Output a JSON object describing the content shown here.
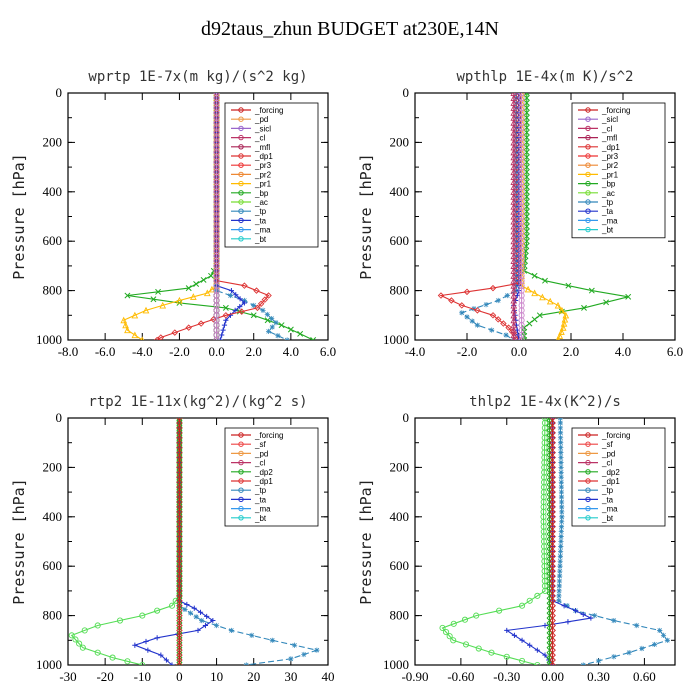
{
  "title": "d92taus_zhun  BUDGET at230E,14N",
  "chart_data": [
    {
      "type": "line",
      "title": "wprtp  1E-7x(m kg)/(s^2 kg)",
      "ylabel": "Pressure [hPa]",
      "xlim": [
        -8,
        6
      ],
      "ylim": [
        1000,
        0
      ],
      "x_ticks": [
        "-8.0",
        "-6.0",
        "-4.0",
        "-2.0",
        "0.0",
        "2.0",
        "4.0",
        "6.0"
      ],
      "x_tick_values": [
        -8,
        -6,
        -4,
        -2,
        0,
        2,
        4,
        6
      ],
      "y_ticks": [
        0,
        200,
        400,
        600,
        800,
        1000
      ],
      "legend": [
        "_forcing",
        "_pd",
        "_sicl",
        "_cl",
        "_mfl",
        "_dp1",
        "_pr3",
        "_pr2",
        "_pr1",
        "_bp",
        "_ac",
        "_tp",
        "_ta",
        "_ma",
        "_bt"
      ],
      "series": [
        {
          "name": "_bp",
          "color": "#22aa22",
          "marker": "x",
          "points": [
            [
              0,
              0
            ],
            [
              0,
              700
            ],
            [
              -0.3,
              740
            ],
            [
              -1.5,
              790
            ],
            [
              -4.8,
              820
            ],
            [
              -2.0,
              850
            ],
            [
              0.5,
              870
            ],
            [
              2.0,
              900
            ],
            [
              3.5,
              940
            ],
            [
              4.5,
              975
            ],
            [
              5.2,
              1000
            ]
          ]
        },
        {
          "name": "_pr1",
          "color": "#ffbb00",
          "marker": "triangle",
          "points": [
            [
              0,
              0
            ],
            [
              0,
              780
            ],
            [
              -0.5,
              810
            ],
            [
              -2.0,
              840
            ],
            [
              -3.8,
              880
            ],
            [
              -5.0,
              920
            ],
            [
              -4.8,
              960
            ],
            [
              -4.0,
              1000
            ]
          ]
        },
        {
          "name": "_ac",
          "color": "#77dd33",
          "marker": "circle",
          "points": [
            [
              0,
              0
            ],
            [
              0,
              1000
            ]
          ]
        },
        {
          "name": "_tp",
          "color": "#3388bb",
          "marker": "asterisk",
          "points": [
            [
              0,
              0
            ],
            [
              0,
              800
            ],
            [
              1.5,
              840
            ],
            [
              2.5,
              880
            ],
            [
              3.2,
              930
            ],
            [
              2.8,
              965
            ],
            [
              3.8,
              1000
            ]
          ]
        },
        {
          "name": "_ta",
          "color": "#2233cc",
          "marker": "plus",
          "points": [
            [
              0,
              0
            ],
            [
              0,
              780
            ],
            [
              0.8,
              800
            ],
            [
              1.5,
              850
            ],
            [
              1.0,
              880
            ],
            [
              0.5,
              920
            ],
            [
              0.2,
              1000
            ]
          ]
        },
        {
          "name": "_dp1",
          "color": "#dd3333",
          "marker": "diamond",
          "points": [
            [
              0,
              0
            ],
            [
              0,
              760
            ],
            [
              1.5,
              780
            ],
            [
              2.8,
              820
            ],
            [
              2.2,
              870
            ],
            [
              0.5,
              900
            ],
            [
              -1.5,
              950
            ],
            [
              -3.0,
              990
            ],
            [
              -3.2,
              1000
            ]
          ]
        },
        {
          "name": "_forcing",
          "color": "#000000",
          "marker": "circle",
          "points": [
            [
              0,
              0
            ],
            [
              0,
              1000
            ]
          ]
        },
        {
          "name": "_pd",
          "color": "#cc88cc",
          "marker": "circle",
          "points": [
            [
              0,
              0
            ],
            [
              0,
              1000
            ]
          ]
        }
      ]
    },
    {
      "type": "line",
      "title": "wpthlp  1E-4x(m K)/s^2",
      "ylabel": "Pressure [hPa]",
      "xlim": [
        -4,
        6
      ],
      "ylim": [
        1000,
        0
      ],
      "x_ticks": [
        "-4.0",
        "-2.0",
        "0.0",
        "2.0",
        "4.0",
        "6.0"
      ],
      "x_tick_values": [
        -4,
        -2,
        0,
        2,
        4,
        6
      ],
      "y_ticks": [
        0,
        200,
        400,
        600,
        800,
        1000
      ],
      "legend": [
        "_forcing",
        "_sicl",
        "_cl",
        "_mfl",
        "_dp1",
        "_pr3",
        "_pr2",
        "_pr1",
        "_bp",
        "_ac",
        "_tp",
        "_ta",
        "_ma",
        "_bt"
      ],
      "series": [
        {
          "name": "_bp",
          "color": "#22aa22",
          "marker": "x",
          "points": [
            [
              0.3,
              0
            ],
            [
              0.3,
              600
            ],
            [
              0.2,
              720
            ],
            [
              1.0,
              760
            ],
            [
              2.8,
              800
            ],
            [
              4.2,
              825
            ],
            [
              2.5,
              870
            ],
            [
              0.8,
              900
            ],
            [
              0.2,
              950
            ],
            [
              0.2,
              1000
            ]
          ]
        },
        {
          "name": "_pr1",
          "color": "#ffbb00",
          "marker": "triangle",
          "points": [
            [
              0.1,
              0
            ],
            [
              0.1,
              780
            ],
            [
              0.6,
              810
            ],
            [
              1.5,
              860
            ],
            [
              1.8,
              900
            ],
            [
              1.7,
              950
            ],
            [
              1.5,
              1000
            ]
          ]
        },
        {
          "name": "_tp",
          "color": "#3388bb",
          "marker": "asterisk",
          "points": [
            [
              -0.1,
              0
            ],
            [
              -0.1,
              800
            ],
            [
              -0.8,
              840
            ],
            [
              -2.2,
              890
            ],
            [
              -1.6,
              940
            ],
            [
              -0.5,
              980
            ],
            [
              -0.2,
              1000
            ]
          ]
        },
        {
          "name": "_dp1",
          "color": "#dd3333",
          "marker": "diamond",
          "points": [
            [
              0,
              0
            ],
            [
              0,
              770
            ],
            [
              -1.0,
              790
            ],
            [
              -3.0,
              820
            ],
            [
              -2.2,
              860
            ],
            [
              -1.0,
              900
            ],
            [
              -0.4,
              950
            ],
            [
              0,
              1000
            ]
          ]
        },
        {
          "name": "_ta",
          "color": "#2233cc",
          "marker": "plus",
          "points": [
            [
              0,
              0
            ],
            [
              0,
              800
            ],
            [
              -0.2,
              860
            ],
            [
              -0.1,
              940
            ],
            [
              0,
              1000
            ]
          ]
        },
        {
          "name": "_forcing",
          "color": "#cc88cc",
          "marker": "circle",
          "points": [
            [
              0.1,
              0
            ],
            [
              0.1,
              1000
            ]
          ]
        },
        {
          "name": "_cl",
          "color": "#bb3366",
          "marker": "triangle",
          "points": [
            [
              -0.2,
              0
            ],
            [
              -0.2,
              1000
            ]
          ]
        }
      ]
    },
    {
      "type": "line",
      "title": "rtp2  1E-11x(kg^2)/(kg^2 s)",
      "ylabel": "Pressure [hPa]",
      "xlim": [
        -30,
        40
      ],
      "ylim": [
        1000,
        0
      ],
      "x_ticks": [
        "-30",
        "-20",
        "-10",
        "0",
        "10",
        "20",
        "30",
        "40"
      ],
      "x_tick_values": [
        -30,
        -20,
        -10,
        0,
        10,
        20,
        30,
        40
      ],
      "y_ticks": [
        0,
        200,
        400,
        600,
        800,
        1000
      ],
      "legend": [
        "_forcing",
        "_sf",
        "_pd",
        "_cl",
        "_dp2",
        "_dp1",
        "_tp",
        "_ta",
        "_ma",
        "_bt"
      ],
      "series": [
        {
          "name": "_dp1",
          "color": "#55dd55",
          "marker": "circle",
          "points": [
            [
              0,
              0
            ],
            [
              0,
              720
            ],
            [
              -2,
              760
            ],
            [
              -10,
              800
            ],
            [
              -22,
              840
            ],
            [
              -29,
              880
            ],
            [
              -26,
              930
            ],
            [
              -18,
              970
            ],
            [
              -10,
              1000
            ]
          ]
        },
        {
          "name": "_tp",
          "color": "#3388bb",
          "marker": "asterisk",
          "points": [
            [
              0,
              0
            ],
            [
              0,
              760
            ],
            [
              3,
              790
            ],
            [
              6,
              820
            ],
            [
              14,
              860
            ],
            [
              25,
              900
            ],
            [
              37,
              940
            ],
            [
              30,
              975
            ],
            [
              18,
              1000
            ]
          ]
        },
        {
          "name": "_ta",
          "color": "#2233cc",
          "marker": "plus",
          "points": [
            [
              0,
              0
            ],
            [
              0,
              740
            ],
            [
              4,
              770
            ],
            [
              9,
              820
            ],
            [
              5,
              860
            ],
            [
              -6,
              890
            ],
            [
              -12,
              920
            ],
            [
              -5,
              960
            ],
            [
              -2,
              1000
            ]
          ]
        },
        {
          "name": "_dp2",
          "color": "#22aa22",
          "marker": "x",
          "points": [
            [
              0,
              0
            ],
            [
              0,
              1000
            ]
          ]
        },
        {
          "name": "_forcing",
          "color": "#cc2222",
          "marker": "diamond",
          "points": [
            [
              0,
              0
            ],
            [
              0,
              1000
            ]
          ]
        }
      ]
    },
    {
      "type": "line",
      "title": "thlp2  1E-4x(K^2)/s",
      "ylabel": "Pressure [hPa]",
      "xlim": [
        -0.9,
        0.8
      ],
      "ylim": [
        1000,
        0
      ],
      "x_ticks": [
        "-0.90",
        "-0.60",
        "-0.30",
        "0.00",
        "0.30",
        "0.60"
      ],
      "x_tick_values": [
        -0.9,
        -0.6,
        -0.3,
        0,
        0.3,
        0.6
      ],
      "y_ticks": [
        0,
        200,
        400,
        600,
        800,
        1000
      ],
      "legend": [
        "_forcing",
        "_sf",
        "_pd",
        "_cl",
        "_dp2",
        "_dp1",
        "_tp",
        "_ta",
        "_ma",
        "_bt"
      ],
      "series": [
        {
          "name": "_dp1",
          "color": "#55dd55",
          "marker": "circle",
          "points": [
            [
              -0.05,
              0
            ],
            [
              -0.06,
              400
            ],
            [
              -0.05,
              700
            ],
            [
              -0.2,
              760
            ],
            [
              -0.5,
              800
            ],
            [
              -0.72,
              850
            ],
            [
              -0.65,
              900
            ],
            [
              -0.4,
              950
            ],
            [
              -0.1,
              1000
            ]
          ]
        },
        {
          "name": "_tp",
          "color": "#3388bb",
          "marker": "asterisk",
          "points": [
            [
              0.05,
              0
            ],
            [
              0.06,
              400
            ],
            [
              0.04,
              740
            ],
            [
              0.15,
              780
            ],
            [
              0.4,
              820
            ],
            [
              0.7,
              860
            ],
            [
              0.75,
              900
            ],
            [
              0.5,
              950
            ],
            [
              0.2,
              1000
            ]
          ]
        },
        {
          "name": "_ta",
          "color": "#2233cc",
          "marker": "plus",
          "points": [
            [
              0,
              0
            ],
            [
              0,
              740
            ],
            [
              0.15,
              780
            ],
            [
              0.25,
              810
            ],
            [
              -0.05,
              840
            ],
            [
              -0.3,
              860
            ],
            [
              -0.2,
              900
            ],
            [
              -0.05,
              960
            ],
            [
              0,
              1000
            ]
          ]
        },
        {
          "name": "_dp2",
          "color": "#22aa22",
          "marker": "x",
          "points": [
            [
              -0.02,
              0
            ],
            [
              -0.02,
              1000
            ]
          ]
        },
        {
          "name": "_forcing",
          "color": "#cc2222",
          "marker": "diamond",
          "points": [
            [
              0,
              0
            ],
            [
              0,
              1000
            ]
          ]
        }
      ]
    }
  ]
}
